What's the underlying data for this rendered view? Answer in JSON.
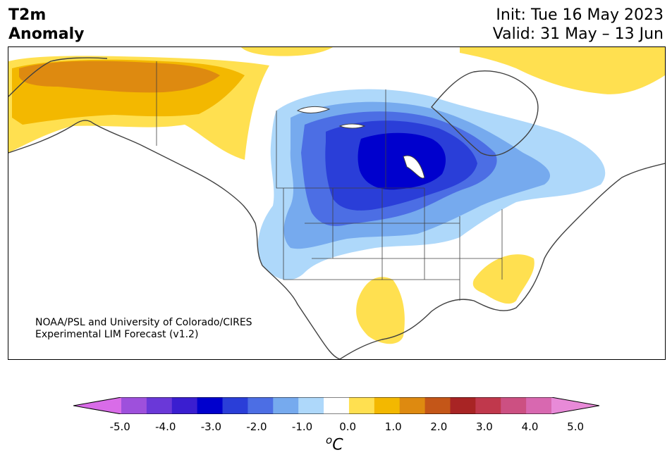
{
  "header": {
    "title_line1": "T2m",
    "title_line2": "Anomaly",
    "init": "Init: Tue 16 May 2023",
    "valid": "Valid: 31 May – 13 Jun"
  },
  "credit": {
    "line1": "NOAA/PSL and University of Colorado/CIRES",
    "line2": "Experimental LIM Forecast (v1.2)"
  },
  "colorbar": {
    "colors": [
      "#d96ce8",
      "#9e50dc",
      "#6a38d8",
      "#3a1ed0",
      "#0000cd",
      "#2a3ed8",
      "#4c6ee4",
      "#76aaee",
      "#aed8fa",
      "#ffffff",
      "#ffe050",
      "#f3b800",
      "#de8a10",
      "#c45618",
      "#a82424",
      "#c0384c",
      "#cc5082",
      "#d868b0",
      "#e88ad8"
    ],
    "tick_labels": [
      "-5.0",
      "-4.0",
      "-3.0",
      "-2.0",
      "-1.0",
      "0.0",
      "1.0",
      "2.0",
      "3.0",
      "4.0",
      "5.0"
    ],
    "unit_prefix": "o",
    "unit_main": "C"
  }
}
